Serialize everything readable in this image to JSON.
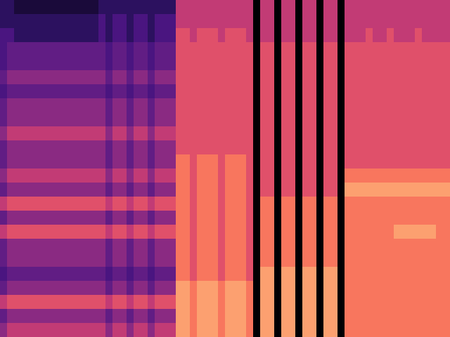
{
  "chart_data": {
    "type": "heatmap",
    "tick_labels": false,
    "zlim": [
      0,
      10
    ],
    "values": [
      [
        2,
        2,
        1,
        1,
        1,
        1,
        1,
        1,
        1,
        1,
        1,
        1,
        1,
        1,
        2,
        2,
        2,
        2,
        2,
        2,
        2,
        2,
        2,
        2,
        2,
        6,
        6,
        6,
        6,
        6,
        6,
        6,
        6,
        6,
        6,
        6,
        0,
        6,
        6,
        0,
        6,
        6,
        0,
        6,
        6,
        0,
        6,
        6,
        0,
        6,
        6,
        6,
        6,
        6,
        6,
        6,
        6,
        6,
        6,
        6,
        6,
        6,
        6,
        6
      ],
      [
        2,
        2,
        2,
        2,
        2,
        2,
        2,
        2,
        2,
        2,
        2,
        2,
        2,
        2,
        3,
        2,
        3,
        3,
        2,
        3,
        3,
        2,
        3,
        3,
        3,
        6,
        6,
        6,
        6,
        6,
        6,
        6,
        6,
        6,
        6,
        6,
        0,
        6,
        6,
        0,
        6,
        6,
        0,
        6,
        6,
        0,
        6,
        6,
        0,
        6,
        6,
        6,
        6,
        6,
        6,
        6,
        6,
        6,
        6,
        6,
        6,
        6,
        6,
        6
      ],
      [
        3,
        3,
        2,
        2,
        2,
        2,
        2,
        2,
        2,
        2,
        2,
        2,
        2,
        2,
        3,
        2,
        3,
        3,
        2,
        3,
        3,
        2,
        3,
        3,
        3,
        7,
        7,
        6,
        7,
        7,
        7,
        6,
        7,
        7,
        7,
        6,
        0,
        6,
        6,
        0,
        6,
        6,
        0,
        6,
        6,
        0,
        6,
        6,
        0,
        6,
        6,
        6,
        7,
        6,
        6,
        7,
        6,
        6,
        6,
        7,
        6,
        6,
        6,
        6
      ],
      [
        3,
        4,
        4,
        4,
        4,
        4,
        4,
        4,
        4,
        4,
        4,
        4,
        4,
        4,
        4,
        3,
        4,
        4,
        3,
        4,
        4,
        3,
        4,
        4,
        4,
        7,
        7,
        7,
        7,
        7,
        7,
        7,
        7,
        7,
        7,
        7,
        0,
        7,
        7,
        0,
        7,
        7,
        0,
        7,
        7,
        0,
        7,
        7,
        0,
        7,
        7,
        7,
        7,
        7,
        7,
        7,
        7,
        7,
        7,
        7,
        7,
        7,
        7,
        7
      ],
      [
        3,
        4,
        4,
        4,
        4,
        4,
        4,
        4,
        4,
        4,
        4,
        4,
        4,
        4,
        4,
        3,
        4,
        4,
        3,
        4,
        4,
        3,
        4,
        4,
        4,
        7,
        7,
        7,
        7,
        7,
        7,
        7,
        7,
        7,
        7,
        7,
        0,
        7,
        7,
        0,
        7,
        7,
        0,
        7,
        7,
        0,
        7,
        7,
        0,
        7,
        7,
        7,
        7,
        7,
        7,
        7,
        7,
        7,
        7,
        7,
        7,
        7,
        7,
        7
      ],
      [
        4,
        5,
        5,
        5,
        5,
        5,
        5,
        5,
        5,
        5,
        5,
        5,
        5,
        5,
        5,
        4,
        5,
        5,
        4,
        5,
        5,
        4,
        5,
        5,
        5,
        7,
        7,
        7,
        7,
        7,
        7,
        7,
        7,
        7,
        7,
        7,
        0,
        7,
        7,
        0,
        7,
        7,
        0,
        7,
        7,
        0,
        7,
        7,
        0,
        7,
        7,
        7,
        7,
        7,
        7,
        7,
        7,
        7,
        7,
        7,
        7,
        7,
        7,
        7
      ],
      [
        3,
        4,
        4,
        4,
        4,
        4,
        4,
        4,
        4,
        4,
        4,
        4,
        4,
        4,
        4,
        3,
        4,
        4,
        3,
        4,
        4,
        3,
        4,
        4,
        4,
        7,
        7,
        7,
        7,
        7,
        7,
        7,
        7,
        7,
        7,
        7,
        0,
        7,
        7,
        0,
        7,
        7,
        0,
        7,
        7,
        0,
        7,
        7,
        0,
        7,
        7,
        7,
        7,
        7,
        7,
        7,
        7,
        7,
        7,
        7,
        7,
        7,
        7,
        7
      ],
      [
        4,
        5,
        5,
        5,
        5,
        5,
        5,
        5,
        5,
        5,
        5,
        5,
        5,
        5,
        5,
        4,
        5,
        5,
        4,
        5,
        5,
        4,
        5,
        5,
        5,
        7,
        7,
        7,
        7,
        7,
        7,
        7,
        7,
        7,
        7,
        7,
        0,
        7,
        7,
        0,
        7,
        7,
        0,
        7,
        7,
        0,
        7,
        7,
        0,
        7,
        7,
        7,
        7,
        7,
        7,
        7,
        7,
        7,
        7,
        7,
        7,
        7,
        7,
        7
      ],
      [
        4,
        5,
        5,
        5,
        5,
        5,
        5,
        5,
        5,
        5,
        5,
        5,
        5,
        5,
        5,
        4,
        5,
        5,
        4,
        5,
        5,
        4,
        5,
        5,
        5,
        7,
        7,
        7,
        7,
        7,
        7,
        7,
        7,
        7,
        7,
        7,
        0,
        7,
        7,
        0,
        7,
        7,
        0,
        7,
        7,
        0,
        7,
        7,
        0,
        7,
        7,
        7,
        7,
        7,
        7,
        7,
        7,
        7,
        7,
        7,
        7,
        7,
        7,
        7
      ],
      [
        5,
        6,
        6,
        6,
        6,
        6,
        6,
        6,
        6,
        6,
        6,
        6,
        6,
        6,
        6,
        5,
        6,
        6,
        5,
        6,
        6,
        5,
        6,
        6,
        6,
        7,
        7,
        7,
        7,
        7,
        7,
        7,
        7,
        7,
        7,
        7,
        0,
        7,
        7,
        0,
        7,
        7,
        0,
        7,
        7,
        0,
        7,
        7,
        0,
        7,
        7,
        7,
        7,
        7,
        7,
        7,
        7,
        7,
        7,
        7,
        7,
        7,
        7,
        7
      ],
      [
        4,
        5,
        5,
        5,
        5,
        5,
        5,
        5,
        5,
        5,
        5,
        5,
        5,
        5,
        5,
        4,
        5,
        5,
        4,
        5,
        5,
        4,
        5,
        5,
        5,
        7,
        7,
        7,
        7,
        7,
        7,
        7,
        7,
        7,
        7,
        7,
        0,
        7,
        7,
        0,
        7,
        7,
        0,
        7,
        7,
        0,
        7,
        7,
        0,
        7,
        7,
        7,
        7,
        7,
        7,
        7,
        7,
        7,
        7,
        7,
        7,
        7,
        7,
        7
      ],
      [
        4,
        5,
        5,
        5,
        5,
        5,
        5,
        5,
        5,
        5,
        5,
        5,
        5,
        5,
        5,
        4,
        5,
        5,
        4,
        5,
        5,
        4,
        5,
        5,
        5,
        8,
        8,
        7,
        8,
        8,
        8,
        7,
        8,
        8,
        8,
        7,
        0,
        7,
        7,
        0,
        7,
        7,
        0,
        7,
        7,
        0,
        7,
        7,
        0,
        7,
        7,
        7,
        7,
        7,
        7,
        7,
        7,
        7,
        7,
        7,
        7,
        7,
        7,
        7
      ],
      [
        5,
        6,
        6,
        6,
        6,
        6,
        6,
        6,
        6,
        6,
        6,
        6,
        6,
        6,
        6,
        5,
        6,
        6,
        5,
        6,
        6,
        5,
        6,
        6,
        6,
        8,
        8,
        7,
        8,
        8,
        8,
        7,
        8,
        8,
        8,
        7,
        0,
        7,
        7,
        0,
        7,
        7,
        0,
        7,
        7,
        0,
        7,
        7,
        0,
        8,
        8,
        8,
        8,
        8,
        8,
        8,
        8,
        8,
        8,
        8,
        8,
        8,
        8,
        8
      ],
      [
        4,
        5,
        5,
        5,
        5,
        5,
        5,
        5,
        5,
        5,
        5,
        5,
        5,
        5,
        5,
        4,
        5,
        5,
        4,
        5,
        5,
        4,
        5,
        5,
        5,
        8,
        8,
        7,
        8,
        8,
        8,
        7,
        8,
        8,
        8,
        7,
        0,
        7,
        7,
        0,
        7,
        7,
        0,
        7,
        7,
        0,
        7,
        7,
        0,
        9,
        9,
        9,
        9,
        9,
        9,
        9,
        9,
        9,
        9,
        9,
        9,
        9,
        9,
        9
      ],
      [
        6,
        7,
        7,
        7,
        7,
        7,
        7,
        7,
        7,
        7,
        7,
        7,
        7,
        7,
        7,
        6,
        7,
        7,
        6,
        7,
        7,
        6,
        7,
        7,
        7,
        8,
        8,
        7,
        8,
        8,
        8,
        7,
        8,
        8,
        8,
        7,
        0,
        8,
        8,
        0,
        8,
        8,
        0,
        8,
        8,
        0,
        8,
        8,
        0,
        8,
        8,
        8,
        8,
        8,
        8,
        8,
        8,
        8,
        8,
        8,
        8,
        8,
        8,
        8
      ],
      [
        4,
        5,
        5,
        5,
        5,
        5,
        5,
        5,
        5,
        5,
        5,
        5,
        5,
        5,
        5,
        4,
        5,
        5,
        4,
        5,
        5,
        4,
        5,
        5,
        5,
        8,
        8,
        7,
        8,
        8,
        8,
        7,
        8,
        8,
        8,
        7,
        0,
        8,
        8,
        0,
        8,
        8,
        0,
        8,
        8,
        0,
        8,
        8,
        0,
        8,
        8,
        8,
        8,
        8,
        8,
        8,
        8,
        8,
        8,
        8,
        8,
        8,
        8,
        8
      ],
      [
        6,
        7,
        7,
        7,
        7,
        7,
        7,
        7,
        7,
        7,
        7,
        7,
        7,
        7,
        7,
        6,
        7,
        7,
        6,
        7,
        7,
        6,
        7,
        7,
        7,
        8,
        8,
        7,
        8,
        8,
        8,
        7,
        8,
        8,
        8,
        7,
        0,
        8,
        8,
        0,
        8,
        8,
        0,
        8,
        8,
        0,
        8,
        8,
        0,
        8,
        8,
        8,
        8,
        8,
        8,
        8,
        9,
        9,
        9,
        9,
        9,
        9,
        8,
        8
      ],
      [
        4,
        5,
        5,
        5,
        5,
        5,
        5,
        5,
        5,
        5,
        5,
        5,
        5,
        5,
        5,
        4,
        5,
        5,
        4,
        5,
        5,
        4,
        5,
        5,
        5,
        8,
        8,
        7,
        8,
        8,
        8,
        7,
        8,
        8,
        8,
        7,
        0,
        8,
        8,
        0,
        8,
        8,
        0,
        8,
        8,
        0,
        8,
        8,
        0,
        8,
        8,
        8,
        8,
        8,
        8,
        8,
        8,
        8,
        8,
        8,
        8,
        8,
        8,
        8
      ],
      [
        4,
        5,
        5,
        5,
        5,
        5,
        5,
        5,
        5,
        5,
        5,
        5,
        5,
        5,
        5,
        4,
        5,
        5,
        4,
        5,
        5,
        4,
        5,
        5,
        5,
        8,
        8,
        7,
        8,
        8,
        8,
        7,
        8,
        8,
        8,
        7,
        0,
        8,
        8,
        0,
        8,
        8,
        0,
        8,
        8,
        0,
        8,
        8,
        0,
        8,
        8,
        8,
        8,
        8,
        8,
        8,
        8,
        8,
        8,
        8,
        8,
        8,
        8,
        8
      ],
      [
        3,
        4,
        4,
        4,
        4,
        4,
        4,
        4,
        4,
        4,
        4,
        4,
        4,
        4,
        4,
        3,
        4,
        4,
        3,
        4,
        4,
        3,
        4,
        4,
        4,
        8,
        8,
        7,
        8,
        8,
        8,
        7,
        8,
        8,
        8,
        7,
        0,
        9,
        9,
        0,
        9,
        9,
        0,
        9,
        9,
        0,
        9,
        9,
        0,
        8,
        8,
        8,
        8,
        8,
        8,
        8,
        8,
        8,
        8,
        8,
        8,
        8,
        8,
        8
      ],
      [
        4,
        5,
        5,
        5,
        5,
        5,
        5,
        5,
        5,
        5,
        5,
        5,
        5,
        5,
        5,
        4,
        5,
        5,
        4,
        5,
        5,
        4,
        5,
        5,
        5,
        9,
        9,
        8,
        9,
        9,
        9,
        8,
        9,
        9,
        9,
        8,
        0,
        9,
        9,
        0,
        9,
        9,
        0,
        9,
        9,
        0,
        9,
        9,
        0,
        8,
        8,
        8,
        8,
        8,
        8,
        8,
        8,
        8,
        8,
        8,
        8,
        8,
        8,
        8
      ],
      [
        6,
        7,
        7,
        7,
        7,
        7,
        7,
        7,
        7,
        7,
        7,
        7,
        7,
        7,
        7,
        6,
        7,
        7,
        6,
        7,
        7,
        6,
        7,
        7,
        7,
        9,
        9,
        8,
        9,
        9,
        9,
        8,
        9,
        9,
        9,
        8,
        0,
        9,
        9,
        0,
        9,
        9,
        0,
        9,
        9,
        0,
        9,
        9,
        0,
        8,
        8,
        8,
        8,
        8,
        8,
        8,
        8,
        8,
        8,
        8,
        8,
        8,
        8,
        8
      ],
      [
        4,
        5,
        5,
        5,
        5,
        5,
        5,
        5,
        5,
        5,
        5,
        5,
        5,
        5,
        5,
        4,
        5,
        5,
        4,
        5,
        5,
        4,
        5,
        5,
        5,
        9,
        9,
        8,
        9,
        9,
        9,
        8,
        9,
        9,
        9,
        8,
        0,
        9,
        9,
        0,
        9,
        9,
        0,
        9,
        9,
        0,
        9,
        9,
        0,
        8,
        8,
        8,
        8,
        8,
        8,
        8,
        8,
        8,
        8,
        8,
        8,
        8,
        8,
        8
      ],
      [
        5,
        6,
        6,
        6,
        6,
        6,
        6,
        6,
        6,
        6,
        6,
        6,
        6,
        6,
        6,
        5,
        6,
        6,
        5,
        6,
        6,
        5,
        6,
        6,
        6,
        9,
        9,
        8,
        9,
        9,
        9,
        8,
        9,
        9,
        9,
        8,
        0,
        9,
        9,
        0,
        9,
        9,
        0,
        9,
        9,
        0,
        9,
        9,
        0,
        8,
        8,
        8,
        8,
        8,
        8,
        8,
        8,
        8,
        8,
        8,
        8,
        8,
        8,
        8
      ]
    ]
  }
}
